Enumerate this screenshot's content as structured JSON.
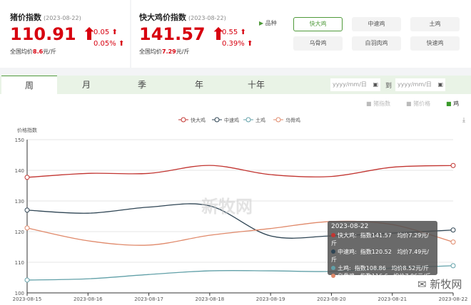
{
  "pig": {
    "title": "猪价指数",
    "date": "(2023-08-22)",
    "value": "110.91",
    "arrow": "⬆",
    "chg": "0.05 ⬆",
    "pct": "0.05% ⬆",
    "avg_label": "全国均价",
    "avg": "8.6",
    "unit": "元/斤"
  },
  "chicken": {
    "title": "快大鸡价指数",
    "date": "(2023-08-22)",
    "value": "141.57",
    "arrow": "⬆",
    "chg": "0.55 ⬆",
    "pct": "0.39% ⬆",
    "avg_label": "全国均价",
    "avg": "7.29",
    "unit": "元/斤"
  },
  "variety": {
    "label": "品种",
    "items": [
      "快大鸡",
      "中速鸡",
      "土鸡",
      "乌骨鸡",
      "白羽肉鸡",
      "快速鸡"
    ],
    "active": "快大鸡"
  },
  "tabs": [
    "周",
    "月",
    "季",
    "年",
    "十年"
  ],
  "date_range": {
    "from_placeholder": "yyyy/mm/日",
    "sep": "到",
    "to_placeholder": "yyyy/mm/日"
  },
  "toggles": [
    "猪指数",
    "猪价格",
    "鸡"
  ],
  "colors": {
    "accent": "#4f9a3a",
    "up": "#d7000f"
  },
  "chart_data": {
    "type": "line",
    "ylabel": "价格指数",
    "ylim": [
      100,
      150
    ],
    "yticks": [
      100,
      110,
      120,
      130,
      140,
      150
    ],
    "categories": [
      "2023-08-15",
      "2023-08-16",
      "2023-08-17",
      "2023-08-18",
      "2023-08-19",
      "2023-08-20",
      "2023-08-21",
      "2023-08-22"
    ],
    "legend_position": "top",
    "series": [
      {
        "name": "快大鸡",
        "color": "#c23531",
        "values": [
          137.7,
          139,
          139,
          141.6,
          138.6,
          138,
          141,
          141.57
        ]
      },
      {
        "name": "中速鸡",
        "color": "#2f4554",
        "values": [
          127,
          126,
          128,
          128.4,
          118.6,
          118.6,
          119.5,
          120.52
        ]
      },
      {
        "name": "土鸡",
        "color": "#61a0a8",
        "values": [
          104.2,
          104.6,
          106,
          107.2,
          107.2,
          107,
          108.1,
          108.86
        ]
      },
      {
        "name": "乌骨鸡",
        "color": "#e0896a",
        "values": [
          121.2,
          117,
          115.6,
          118.8,
          121,
          123.3,
          122.3,
          116.6
        ]
      }
    ],
    "tooltip": {
      "date": "2023-08-22",
      "rows": [
        {
          "name": "快大鸡:",
          "index": "指数141.57",
          "price": "均价7.29元/斤"
        },
        {
          "name": "中速鸡:",
          "index": "指数120.52",
          "price": "均价7.49元/斤"
        },
        {
          "name": "土鸡:",
          "index": "指数108.86",
          "price": "均价8.52元/斤"
        },
        {
          "name": "乌骨鸡:",
          "index": "指数116.6",
          "price": "均价7.06元/斤"
        }
      ]
    }
  },
  "watermark": "新牧网"
}
